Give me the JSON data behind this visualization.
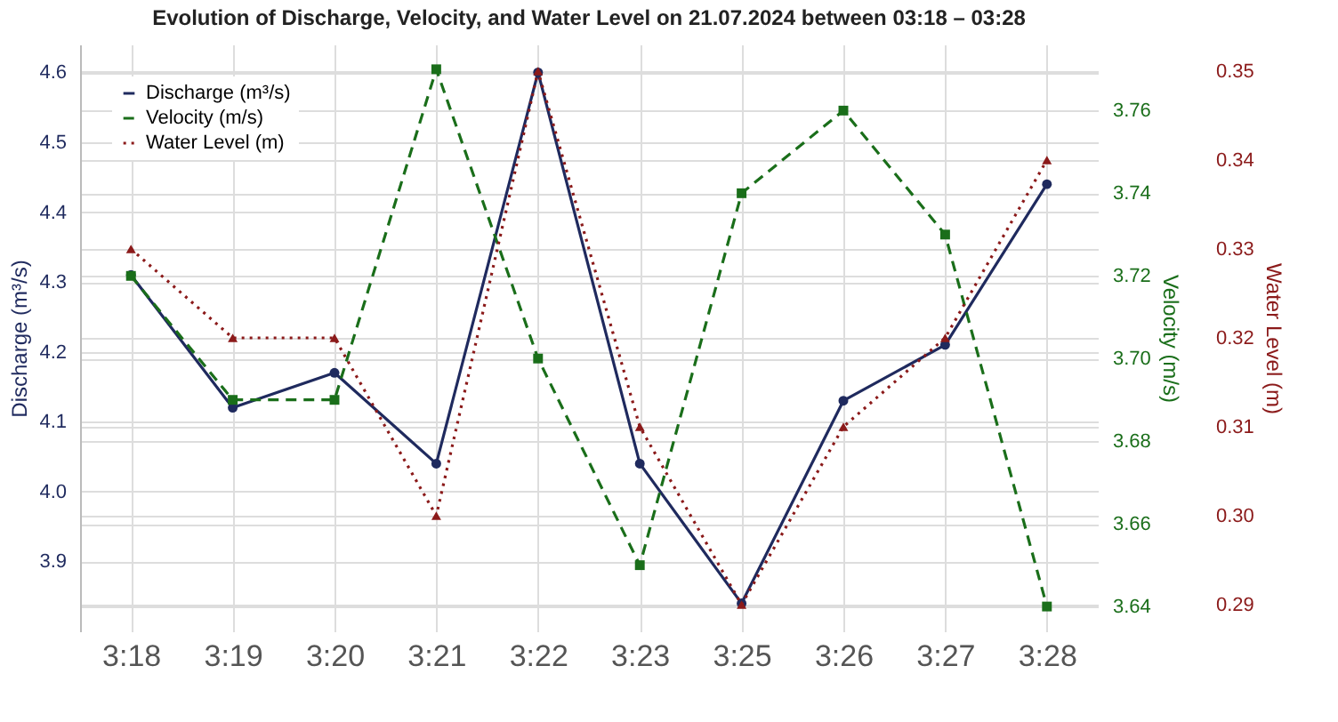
{
  "chart_data": {
    "type": "line",
    "title": "Evolution of Discharge, Velocity, and Water Level on 21.07.2024 between 03:18 – 03:28",
    "ylabel": "Discharge (m³/s)",
    "y2label": "Velocity (m/s)",
    "y3label": "Water Level (m)",
    "categories": [
      "3:18",
      "3:19",
      "3:20",
      "3:21",
      "3:22",
      "3:23",
      "3:25",
      "3:26",
      "3:27",
      "3:28"
    ],
    "ylim": [
      3.8,
      4.64
    ],
    "yticks": [
      3.9,
      {
        "value": 4.0,
        "label": "4.0"
      },
      4.1,
      4.2,
      4.3,
      4.4,
      4.5,
      4.6
    ],
    "y2lim": [
      3.634,
      3.776
    ],
    "y2ticks": [
      3.64,
      3.66,
      3.68,
      {
        "value": 3.7,
        "label": "3.70"
      },
      3.72,
      3.74,
      3.76
    ],
    "y3lim": [
      0.287,
      0.353
    ],
    "y3ticks": [
      0.29,
      {
        "value": 0.3,
        "label": "0.30"
      },
      0.31,
      0.32,
      0.33,
      0.34,
      0.35
    ],
    "grid": true,
    "legend": "top left",
    "series": [
      {
        "name": "Discharge (m³/s)",
        "color": "#1f2a5e",
        "marker": "circle",
        "line_style": "solid",
        "values": [
          4.31,
          4.12,
          4.17,
          4.04,
          4.6,
          4.04,
          3.84,
          4.13,
          4.21,
          4.44
        ]
      },
      {
        "name": "Velocity (m/s)",
        "color": "#1a6e1a",
        "marker": "square",
        "line_style": "dashed",
        "axis": "y2",
        "values": [
          3.72,
          3.69,
          3.69,
          3.77,
          3.7,
          3.65,
          3.74,
          3.76,
          3.73,
          3.64
        ]
      },
      {
        "name": "Water Level (m)",
        "color": "#8b1a1a",
        "marker": "triangle",
        "line_style": "dotted",
        "axis": "y3",
        "values": [
          0.33,
          0.32,
          0.32,
          0.3,
          0.35,
          0.31,
          0.29,
          0.31,
          0.32,
          0.34
        ]
      }
    ]
  }
}
